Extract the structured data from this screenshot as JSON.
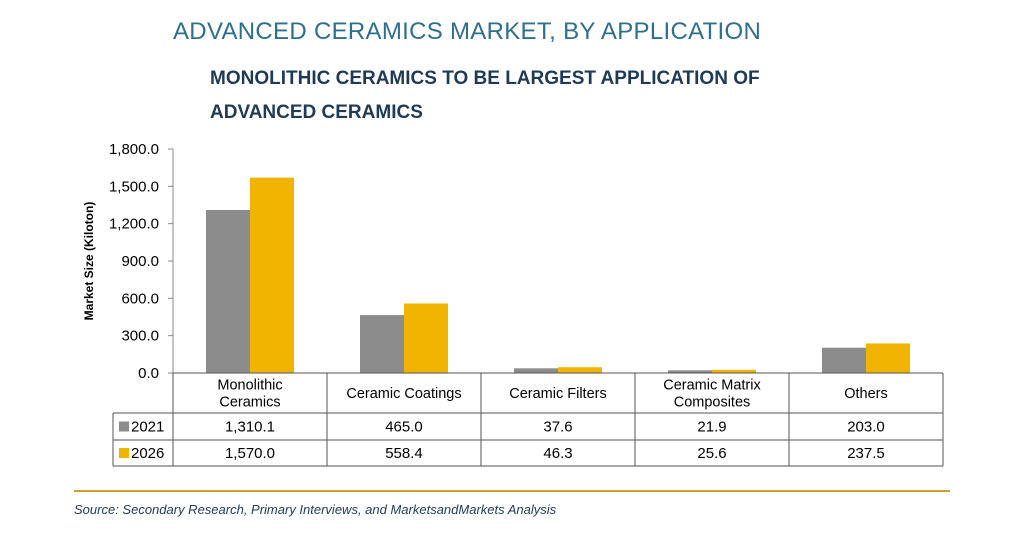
{
  "title": "ADVANCED CERAMICS MARKET, BY APPLICATION",
  "subtitle": "MONOLITHIC CERAMICS TO BE LARGEST APPLICATION OF ADVANCED CERAMICS",
  "source": "Source: Secondary Research, Primary Interviews, and MarketsandMarkets Analysis",
  "colors": {
    "s2021": "#8c8c8c",
    "s2026": "#f0b400",
    "grid": "#c8c8c8",
    "accent": "#c9a227"
  },
  "chart_data": {
    "type": "bar",
    "title": "ADVANCED CERAMICS MARKET, BY APPLICATION",
    "subtitle": "MONOLITHIC CERAMICS TO BE LARGEST APPLICATION OF ADVANCED CERAMICS",
    "ylabel": "Market Size (Kiloton)",
    "xlabel": "",
    "ylim": [
      0,
      1800
    ],
    "yticks": [
      "0.0",
      "300.0",
      "600.0",
      "900.0",
      "1,200.0",
      "1,500.0",
      "1,800.0"
    ],
    "categories": [
      [
        "Monolithic",
        "Ceramics"
      ],
      [
        "Ceramic Coatings"
      ],
      [
        "Ceramic Filters"
      ],
      [
        "Ceramic Matrix",
        "Composites"
      ],
      [
        "Others"
      ]
    ],
    "series": [
      {
        "name": "2021",
        "values": [
          1310.1,
          465.0,
          37.6,
          21.9,
          203.0
        ],
        "labels": [
          "1,310.1",
          "465.0",
          "37.6",
          "21.9",
          "203.0"
        ]
      },
      {
        "name": "2026",
        "values": [
          1570.0,
          558.4,
          46.3,
          25.6,
          237.5
        ],
        "labels": [
          "1,570.0",
          "558.4",
          "46.3",
          "25.6",
          "237.5"
        ]
      }
    ],
    "grid": false,
    "legend": "data-table-left"
  }
}
